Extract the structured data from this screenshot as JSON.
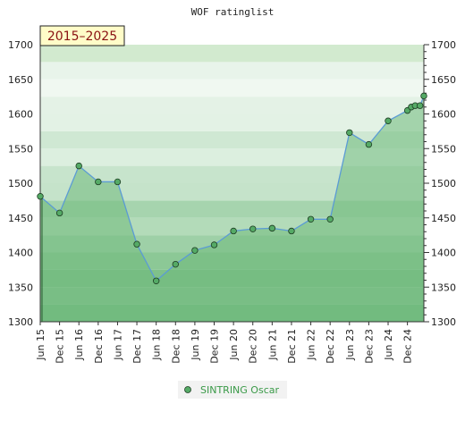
{
  "chart_data": {
    "type": "line",
    "title": "WOF ratinglist",
    "period_label": "2015–2025",
    "ylim": [
      1300,
      1700
    ],
    "y_ticks": [
      1300,
      1350,
      1400,
      1450,
      1500,
      1550,
      1600,
      1650,
      1700
    ],
    "y_tick_labels": [
      "1300",
      "1350",
      "1400",
      "1450",
      "1500",
      "1550",
      "1600",
      "1650",
      "1700"
    ],
    "x_ticks": [
      {
        "label": "Jun 15",
        "t": 0
      },
      {
        "label": "Dec 15",
        "t": 1
      },
      {
        "label": "Jun 16",
        "t": 2
      },
      {
        "label": "Dec 16",
        "t": 3
      },
      {
        "label": "Jun 17",
        "t": 4
      },
      {
        "label": "Dec 17",
        "t": 5
      },
      {
        "label": "Jun 18",
        "t": 6
      },
      {
        "label": "Dec 18",
        "t": 7
      },
      {
        "label": "Jun 19",
        "t": 8
      },
      {
        "label": "Dec 19",
        "t": 9
      },
      {
        "label": "Jun 20",
        "t": 10
      },
      {
        "label": "Dec 20",
        "t": 11
      },
      {
        "label": "Jun 21",
        "t": 12
      },
      {
        "label": "Dec 21",
        "t": 13
      },
      {
        "label": "Jun 22",
        "t": 14
      },
      {
        "label": "Dec 22",
        "t": 15
      },
      {
        "label": "Jun 23",
        "t": 16
      },
      {
        "label": "Dec 23",
        "t": 17
      },
      {
        "label": "Jun 24",
        "t": 18
      },
      {
        "label": "Dec 24",
        "t": 19
      }
    ],
    "series": [
      {
        "name": "SINTRING Oscar",
        "color": "#3a9a48",
        "line_color": "#5b9bd5",
        "fill_color": "#6fba7c",
        "marker_color": "#55aa66",
        "points": [
          {
            "t": 0,
            "y": 1481
          },
          {
            "t": 1,
            "y": 1457
          },
          {
            "t": 2,
            "y": 1525
          },
          {
            "t": 3,
            "y": 1502
          },
          {
            "t": 4,
            "y": 1502
          },
          {
            "t": 5,
            "y": 1412
          },
          {
            "t": 6,
            "y": 1359
          },
          {
            "t": 7,
            "y": 1383
          },
          {
            "t": 8,
            "y": 1403
          },
          {
            "t": 9,
            "y": 1411
          },
          {
            "t": 10,
            "y": 1431
          },
          {
            "t": 11,
            "y": 1434
          },
          {
            "t": 12,
            "y": 1435
          },
          {
            "t": 13,
            "y": 1431
          },
          {
            "t": 14,
            "y": 1448
          },
          {
            "t": 15,
            "y": 1448
          },
          {
            "t": 16,
            "y": 1573
          },
          {
            "t": 17,
            "y": 1556
          },
          {
            "t": 18,
            "y": 1590
          },
          {
            "t": 19,
            "y": 1605
          },
          {
            "t": 19.2,
            "y": 1610
          },
          {
            "t": 19.4,
            "y": 1612
          },
          {
            "t": 19.65,
            "y": 1612
          },
          {
            "t": 19.85,
            "y": 1626
          }
        ]
      }
    ],
    "band_colors": [
      {
        "from": 1300,
        "to": 1400,
        "color": "#7fc18a"
      },
      {
        "from": 1400,
        "to": 1500,
        "color": "#a6d4ae"
      },
      {
        "from": 1500,
        "to": 1600,
        "color": "#cfe8d3"
      },
      {
        "from": 1600,
        "to": 1700,
        "color": "#e8f4ea"
      }
    ],
    "grid": true,
    "legend_position": "bottom-center"
  }
}
